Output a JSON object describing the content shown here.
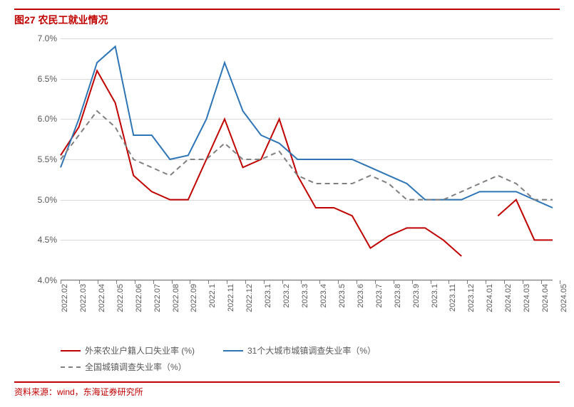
{
  "title": "图27 农民工就业情况",
  "footer": "资料来源：wind，东海证券研究所",
  "chart": {
    "type": "line",
    "ylim": [
      4.0,
      7.0
    ],
    "ytick_step": 0.5,
    "y_ticks": [
      "4.0%",
      "4.5%",
      "5.0%",
      "5.5%",
      "6.0%",
      "6.5%",
      "7.0%"
    ],
    "y_values": [
      4.0,
      4.5,
      5.0,
      5.5,
      6.0,
      6.5,
      7.0
    ],
    "x_labels": [
      "2022.02",
      "2022.03",
      "2022.04",
      "2022.05",
      "2022.06",
      "2022.07",
      "2022.08",
      "2022.09",
      "2022.1",
      "2022.11",
      "2022.12",
      "2023.1",
      "2023.2",
      "2023.3",
      "2023.4",
      "2023.5",
      "2023.6",
      "2023.7",
      "2023.8",
      "2023.9",
      "2023.1",
      "2023.11",
      "2023.12",
      "2024.01",
      "2024.02",
      "2024.03",
      "2024.04",
      "2024.05"
    ],
    "grid_color": "#d9d9d9",
    "background_color": "#ffffff",
    "axis_color": "#808080",
    "label_color": "#595959",
    "label_fontsize": 12,
    "title_fontsize": 14,
    "title_color": "#c00000",
    "line_width": 2,
    "series": [
      {
        "name": "外来农业户籍人口失业率 (%)",
        "color": "#c00000",
        "dash": "solid",
        "data": [
          5.55,
          5.9,
          6.6,
          6.2,
          5.3,
          5.1,
          5.0,
          5.0,
          5.5,
          6.0,
          5.4,
          5.5,
          6.0,
          5.3,
          4.9,
          4.9,
          4.8,
          4.4,
          4.55,
          4.65,
          4.65,
          4.5,
          4.3,
          null,
          4.8,
          5.0,
          4.5,
          4.5
        ]
      },
      {
        "name": "31个大城市城镇调查失业率（%）",
        "color": "#2e75b6",
        "dash": "solid",
        "data": [
          5.4,
          6.0,
          6.7,
          6.9,
          5.8,
          5.8,
          5.5,
          5.55,
          6.0,
          6.7,
          6.1,
          5.8,
          5.7,
          5.5,
          5.5,
          5.5,
          5.5,
          5.4,
          5.3,
          5.2,
          5.0,
          5.0,
          5.0,
          5.1,
          5.1,
          5.1,
          5.0,
          4.9
        ]
      },
      {
        "name": "全国城镇调查失业率（%）",
        "color": "#808080",
        "dash": "dashed",
        "data": [
          5.5,
          5.8,
          6.1,
          5.9,
          5.5,
          5.4,
          5.3,
          5.5,
          5.5,
          5.7,
          5.5,
          5.5,
          5.6,
          5.3,
          5.2,
          5.2,
          5.2,
          5.3,
          5.2,
          5.0,
          5.0,
          5.0,
          5.1,
          5.2,
          5.3,
          5.2,
          5.0,
          5.0
        ]
      }
    ]
  }
}
